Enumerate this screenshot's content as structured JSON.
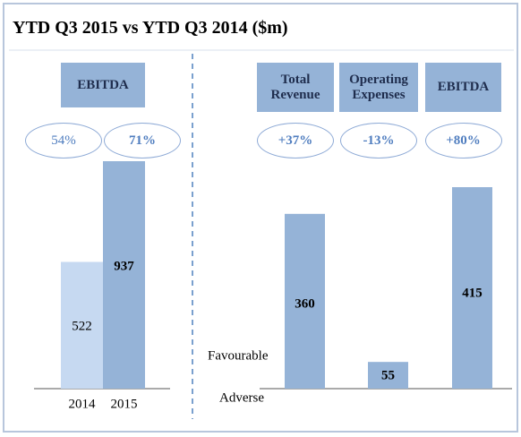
{
  "title": "YTD Q3 2015 vs YTD Q3 2014 ($m)",
  "chart_data": [
    {
      "type": "bar",
      "header": "EBITDA",
      "annotations": [
        "54%",
        "71%"
      ],
      "categories": [
        "2014",
        "2015"
      ],
      "values": [
        522,
        937
      ],
      "colors": [
        "#c6d9f1",
        "#95b3d7"
      ]
    },
    {
      "type": "bar",
      "categories": [
        "Total Revenue",
        "Operating Expenses",
        "EBITDA"
      ],
      "annotations": [
        "+37%",
        "-13%",
        "+80%"
      ],
      "values": [
        360,
        55,
        415
      ],
      "color": "#95b3d7",
      "axis_labels": [
        "Favourable",
        "Adverse"
      ]
    }
  ]
}
